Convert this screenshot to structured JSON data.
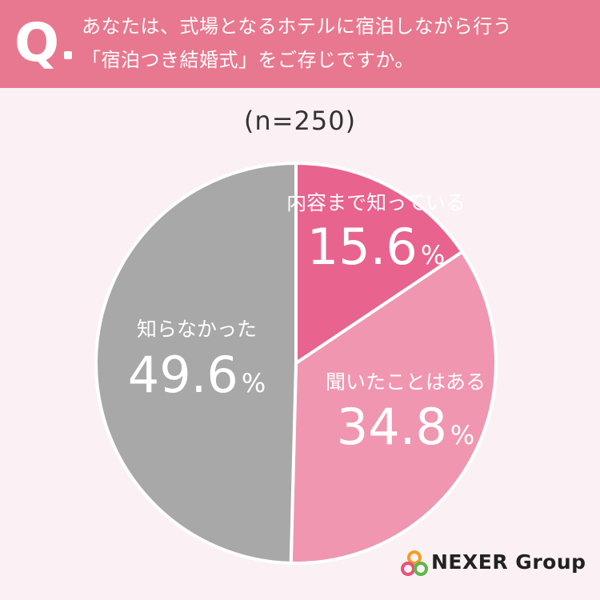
{
  "question": {
    "mark": "Q",
    "line1": "あなたは、式場となるホテルに宿泊しながら行う",
    "line2": "「宿泊つき結婚式」をご存じですか。"
  },
  "sample_size": "(n=250)",
  "brand": "NEXER Group",
  "colors": {
    "banner": "#e8788f",
    "background": "#fbf1f4",
    "slice_know_detail": "#e8638e",
    "slice_heard": "#f096b1",
    "slice_unknown": "#a8a8a8"
  },
  "chart_data": {
    "type": "pie",
    "start": "12 o'clock",
    "direction": "clockwise",
    "slices": [
      {
        "label": "内容まで知っている",
        "value": 15.6,
        "display": "15.6",
        "color": "#e8638e"
      },
      {
        "label": "聞いたことはある",
        "value": 34.8,
        "display": "34.8",
        "color": "#f096b1"
      },
      {
        "label": "知らなかった",
        "value": 49.6,
        "display": "49.6",
        "color": "#a8a8a8"
      }
    ],
    "unit": "%"
  }
}
